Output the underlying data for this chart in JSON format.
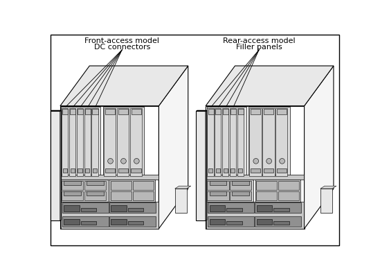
{
  "background_color": "#ffffff",
  "border_color": "#000000",
  "fig_width": 5.49,
  "fig_height": 4.02,
  "dpi": 100,
  "left_label_line1": "Front-access model",
  "left_label_line2": "DC connectors",
  "right_label_line1": "Rear-access model",
  "right_label_line2": "Filler panels",
  "text_fontsize": 8.0,
  "ec": "#000000",
  "fc_white": "#ffffff",
  "fc_light": "#f0f0f0",
  "fc_mid": "#d8d8d8",
  "fc_dark": "#b0b0b0",
  "fc_darker": "#808080",
  "fc_darkest": "#404040",
  "lw_main": 0.8,
  "lw_thin": 0.5,
  "lw_detail": 0.4
}
